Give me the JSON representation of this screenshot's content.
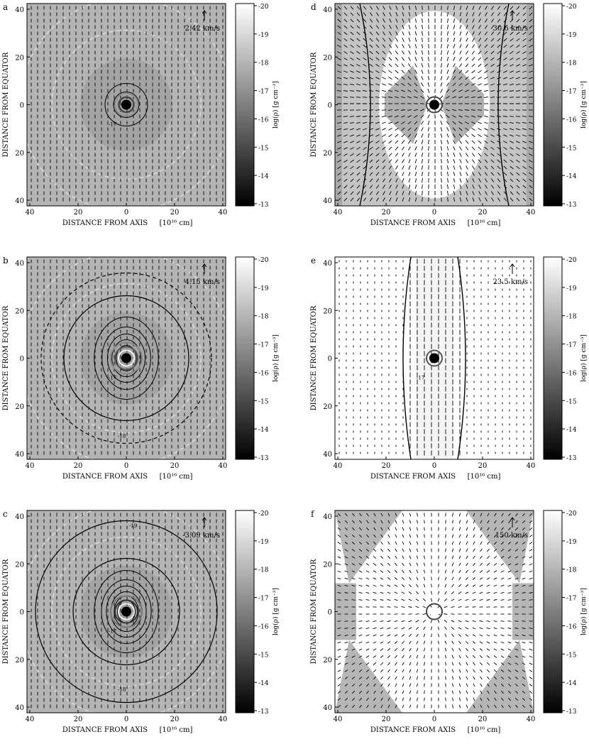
{
  "figure": {
    "panels": [
      {
        "letter": "a",
        "velocity_label": "2.42 km/s",
        "bg": "#b4b4b4",
        "core_colors": [
          "#000000",
          "#555555",
          "#909090"
        ],
        "contours": "few",
        "pattern": "radial"
      },
      {
        "letter": "d",
        "velocity_label": "30.6 km/s",
        "bg": "#a9a9a9",
        "core_colors": [
          "#000000",
          "#444444"
        ],
        "contours": "none",
        "pattern": "shells"
      },
      {
        "letter": "b",
        "velocity_label": "4.15 km/s",
        "bg": "#b4b4b4",
        "core_colors": [
          "#000000",
          "#f0f0f0",
          "#555555",
          "#888888"
        ],
        "contours": "many",
        "pattern": "radial"
      },
      {
        "letter": "e",
        "velocity_label": "23.5 km/s",
        "bg": "#ffffff",
        "core_colors": [
          "#000000",
          "#555555"
        ],
        "contours": "jet",
        "pattern": "jet"
      },
      {
        "letter": "c",
        "velocity_label": "-3.09 km/s",
        "bg": "#b4b4b4",
        "core_colors": [
          "#000000",
          "#f0f0f0",
          "#333333",
          "#777777"
        ],
        "contours": "dense",
        "pattern": "radial"
      },
      {
        "letter": "f",
        "velocity_label": "150 km/s",
        "bg": "#ffffff",
        "core_colors": [
          "#ffffff",
          "#444444"
        ],
        "contours": "none",
        "pattern": "diamond"
      }
    ],
    "x_axis_label": "DISTANCE FROM AXIS",
    "x_axis_unit": "[10¹⁶ cm]",
    "y_axis_label": "DISTANCE FROM EQUATOR",
    "x_ticks": [
      "40",
      "20",
      "0",
      "20",
      "40"
    ],
    "y_ticks": [
      "40",
      "20",
      "0",
      "20",
      "40"
    ],
    "colorbar_label": "log(ρ)  [g cm⁻³]",
    "colorbar_ticks": [
      "-20",
      "-19",
      "-18",
      "-17",
      "-16",
      "-15",
      "-14",
      "-13"
    ],
    "contour_tags": [
      "-17",
      "-18",
      "-19"
    ]
  }
}
